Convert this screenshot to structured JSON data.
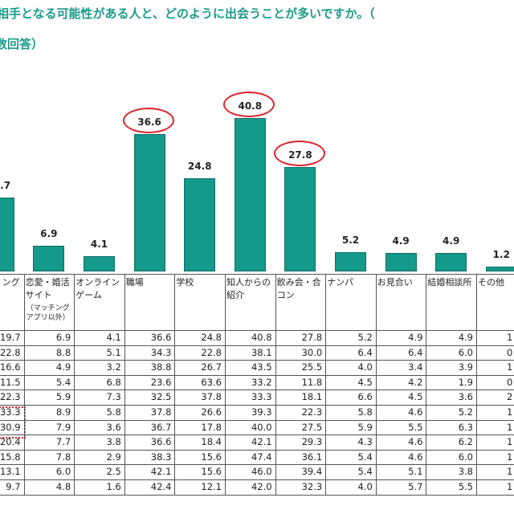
{
  "chart_data": {
    "type": "bar",
    "title": [
      "相手となる可能性がある人と、どのように出会うことが多いですか。（",
      "数回答）"
    ],
    "categories": [
      "ング",
      "恋愛・婚活サイト",
      "オンラインゲーム",
      "職場",
      "学校",
      "知人からの紹介",
      "飲み会・合コン",
      "ナンパ",
      "お見合い",
      "結婚相談所",
      "その他"
    ],
    "category_note": "（マッチングアプリ以外）",
    "values": [
      19.7,
      6.9,
      4.1,
      36.6,
      24.8,
      40.8,
      27.8,
      5.2,
      4.9,
      4.9,
      1.2
    ],
    "color": "#14998a"
  },
  "table": {
    "rows": [
      [
        "19.7",
        "6.9",
        "4.1",
        "36.6",
        "24.8",
        "40.8",
        "27.8",
        "5.2",
        "4.9",
        "4.9",
        "1"
      ],
      [
        "22.8",
        "8.8",
        "5.1",
        "34.3",
        "22.8",
        "38.1",
        "30.0",
        "6.4",
        "6.4",
        "6.0",
        "0"
      ],
      [
        "16.6",
        "4.9",
        "3.2",
        "38.8",
        "26.7",
        "43.5",
        "25.5",
        "4.0",
        "3.4",
        "3.9",
        "1"
      ],
      [
        "11.5",
        "5.4",
        "6.8",
        "23.6",
        "63.6",
        "33.2",
        "11.8",
        "4.5",
        "4.2",
        "1.9",
        "0"
      ],
      [
        "22.3",
        "5.9",
        "7.3",
        "32.5",
        "37.8",
        "33.3",
        "18.1",
        "6.6",
        "4.5",
        "3.6",
        "2"
      ],
      [
        "33.3",
        "8.9",
        "5.8",
        "37.8",
        "26.6",
        "39.3",
        "22.3",
        "5.8",
        "4.6",
        "5.2",
        "1"
      ],
      [
        "30.9",
        "7.9",
        "3.6",
        "36.7",
        "17.8",
        "40.0",
        "27.5",
        "5.9",
        "5.5",
        "6.3",
        "1"
      ],
      [
        "20.4",
        "7.7",
        "3.8",
        "36.6",
        "18.4",
        "42.1",
        "29.3",
        "4.3",
        "4.6",
        "6.2",
        "1"
      ],
      [
        "15.8",
        "7.8",
        "2.9",
        "38.3",
        "15.6",
        "47.4",
        "36.1",
        "5.4",
        "4.6",
        "6.0",
        "1"
      ],
      [
        "13.1",
        "6.0",
        "2.5",
        "42.1",
        "15.6",
        "46.0",
        "39.4",
        "5.4",
        "5.1",
        "3.8",
        "1"
      ],
      [
        "9.7",
        "4.8",
        "1.6",
        "42.4",
        "12.1",
        "42.0",
        "32.3",
        "4.0",
        "5.7",
        "5.5",
        "1"
      ]
    ]
  }
}
